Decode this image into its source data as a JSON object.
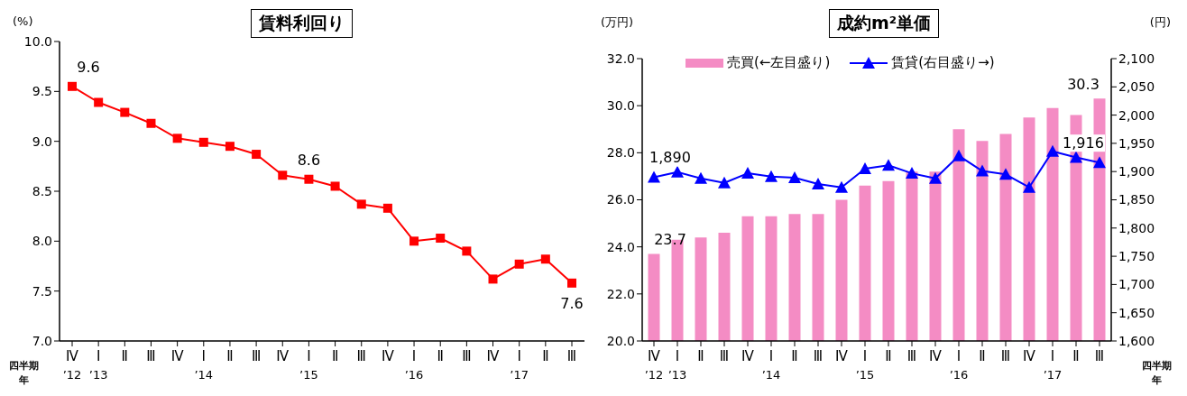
{
  "chart_data": [
    {
      "type": "line",
      "title": "賃料利回り",
      "ylabel": "(%)",
      "xlabel": "四半期年",
      "categories": [
        "Ⅳ\n’12",
        "Ⅰ\n’13",
        "Ⅱ",
        "Ⅲ",
        "Ⅳ",
        "Ⅰ\n’14",
        "Ⅱ",
        "Ⅲ",
        "Ⅳ",
        "Ⅰ\n’15",
        "Ⅱ",
        "Ⅲ",
        "Ⅳ",
        "Ⅰ\n’16",
        "Ⅱ",
        "Ⅲ",
        "Ⅳ",
        "Ⅰ\n’17",
        "Ⅱ",
        "Ⅲ"
      ],
      "series": [
        {
          "color": "#ff0000",
          "values": [
            9.55,
            9.39,
            9.29,
            9.18,
            9.03,
            8.99,
            8.95,
            8.87,
            8.66,
            8.62,
            8.55,
            8.37,
            8.33,
            8.0,
            8.03,
            7.9,
            7.62,
            7.77,
            7.82,
            7.58
          ],
          "value_labels": [
            "9.6",
            null,
            null,
            null,
            null,
            null,
            null,
            null,
            null,
            "8.6",
            null,
            null,
            null,
            null,
            null,
            null,
            null,
            null,
            null,
            "7.6"
          ]
        }
      ],
      "ylim": [
        7,
        10
      ],
      "yticks": [
        {
          "value": 7,
          "label": "7.0"
        },
        7.5,
        {
          "value": 8,
          "label": "8.0"
        },
        8.5,
        {
          "value": 9,
          "label": "9.0"
        },
        9.5,
        {
          "value": 10,
          "label": "10.0"
        }
      ],
      "marker": "square",
      "legend": false
    },
    {
      "type": "bar",
      "title": "成約m²単価",
      "ylabel": "(万円)",
      "y2label": "(円)",
      "xlabel": "四半期年",
      "categories": [
        "Ⅳ\n’12",
        "Ⅰ\n’13",
        "Ⅱ",
        "Ⅲ",
        "Ⅳ",
        "Ⅰ\n’14",
        "Ⅱ",
        "Ⅲ",
        "Ⅳ",
        "Ⅰ\n’15",
        "Ⅱ",
        "Ⅲ",
        "Ⅳ",
        "Ⅰ\n’16",
        "Ⅱ",
        "Ⅲ",
        "Ⅳ",
        "Ⅰ\n’17",
        "Ⅱ",
        "Ⅲ"
      ],
      "series": [
        {
          "name": "売買(←左目盛り)",
          "type": "bar",
          "color": "#f48cc4",
          "values": [
            23.7,
            24.3,
            24.4,
            24.6,
            25.3,
            25.3,
            25.4,
            25.4,
            26.0,
            26.6,
            26.8,
            27.2,
            27.2,
            29.0,
            28.5,
            28.8,
            29.5,
            29.9,
            29.6,
            30.3
          ],
          "value_labels": [
            "23.7",
            null,
            null,
            null,
            null,
            null,
            null,
            null,
            null,
            null,
            null,
            null,
            null,
            null,
            null,
            null,
            null,
            null,
            null,
            "30.3"
          ]
        },
        {
          "name": "賃貸(右目盛り→)",
          "type": "line",
          "axis": "y2",
          "color": "#0000ff",
          "values": [
            1890,
            1899,
            1888,
            1880,
            1897,
            1891,
            1889,
            1878,
            1872,
            1905,
            1911,
            1897,
            1888,
            1928,
            1901,
            1895,
            1872,
            1936,
            1925,
            1916
          ],
          "value_labels": [
            "1,890",
            null,
            null,
            null,
            null,
            null,
            null,
            null,
            null,
            null,
            null,
            null,
            null,
            null,
            null,
            null,
            null,
            null,
            null,
            "1,916"
          ]
        }
      ],
      "ylim": [
        20,
        32
      ],
      "yticks": [
        {
          "value": 20,
          "label": "20.0"
        },
        {
          "value": 22,
          "label": "22.0"
        },
        {
          "value": 24,
          "label": "24.0"
        },
        {
          "value": 26,
          "label": "26.0"
        },
        {
          "value": 28,
          "label": "28.0"
        },
        {
          "value": 30,
          "label": "30.0"
        },
        {
          "value": 32,
          "label": "32.0"
        }
      ],
      "y2lim": [
        1600,
        2100
      ],
      "y2ticks": [
        {
          "value": 1600,
          "label": "1,600"
        },
        {
          "value": 1650,
          "label": "1,650"
        },
        {
          "value": 1700,
          "label": "1,700"
        },
        {
          "value": 1750,
          "label": "1,750"
        },
        {
          "value": 1800,
          "label": "1,800"
        },
        {
          "value": 1850,
          "label": "1,850"
        },
        {
          "value": 1900,
          "label": "1,900"
        },
        {
          "value": 1950,
          "label": "1,950"
        },
        {
          "value": 2000,
          "label": "2,000"
        },
        {
          "value": 2050,
          "label": "2,050"
        },
        {
          "value": 2100,
          "label": "2,100"
        }
      ],
      "marker": "triangle",
      "legend": "top left"
    }
  ]
}
